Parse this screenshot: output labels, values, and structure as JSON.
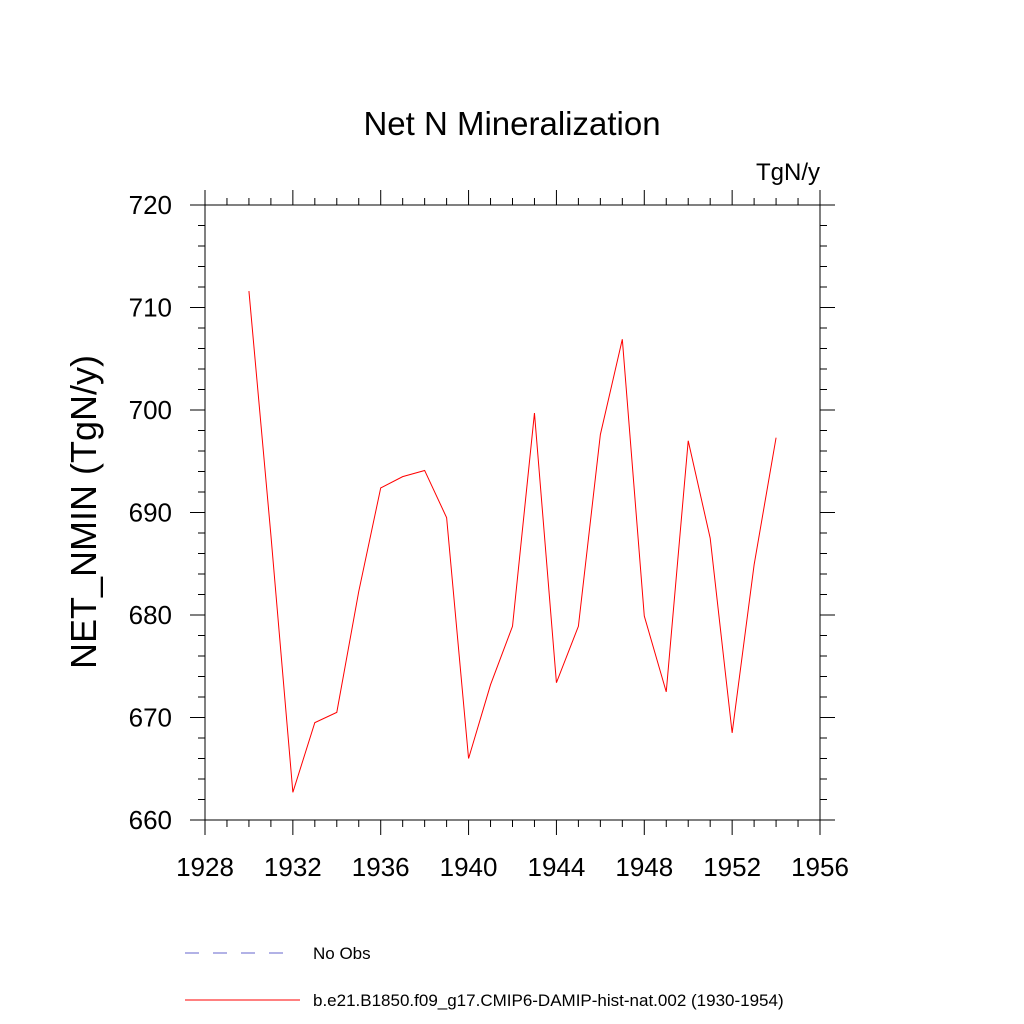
{
  "chart_data": {
    "type": "line",
    "title": "Net N Mineralization",
    "units_label": "TgN/y",
    "ylabel": "NET_NMIN  (TgN/y)",
    "xlabel": "",
    "xlim": [
      1928,
      1956
    ],
    "ylim": [
      660,
      720
    ],
    "x_ticks": [
      1928,
      1932,
      1936,
      1940,
      1944,
      1948,
      1952,
      1956
    ],
    "y_ticks": [
      660,
      670,
      680,
      690,
      700,
      710,
      720
    ],
    "grid": false,
    "legend_position": "bottom",
    "legend": [
      {
        "label": "No Obs",
        "color": "#6666cc",
        "style": "dashed"
      },
      {
        "label": "b.e21.B1850.f09_g17.CMIP6-DAMIP-hist-nat.002 (1930-1954)",
        "color": "#ff0000",
        "style": "solid"
      }
    ],
    "series": [
      {
        "name": "b.e21.B1850.f09_g17.CMIP6-DAMIP-hist-nat.002 (1930-1954)",
        "color": "#ff0000",
        "x": [
          1930,
          1931,
          1932,
          1933,
          1934,
          1935,
          1936,
          1937,
          1938,
          1939,
          1940,
          1941,
          1942,
          1943,
          1944,
          1945,
          1946,
          1947,
          1948,
          1949,
          1950,
          1951,
          1952,
          1953,
          1954
        ],
        "y": [
          711.6,
          687.8,
          662.7,
          669.5,
          670.5,
          682.3,
          692.4,
          693.5,
          694.1,
          689.5,
          666.0,
          673.2,
          678.9,
          699.7,
          673.4,
          678.9,
          697.6,
          706.9,
          679.9,
          672.5,
          697.0,
          687.5,
          668.5,
          684.9,
          697.3
        ]
      }
    ]
  }
}
